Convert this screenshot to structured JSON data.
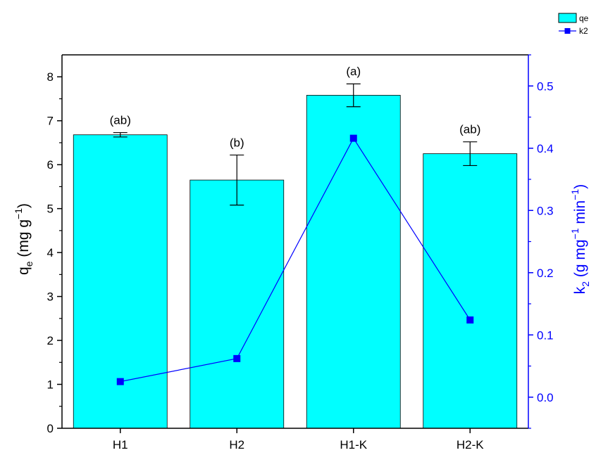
{
  "chart_data": {
    "type": "bar",
    "categories": [
      "H1",
      "H2",
      "H1-K",
      "H2-K"
    ],
    "series": [
      {
        "name": "qe",
        "type": "bar",
        "axis": "left",
        "values": [
          6.68,
          5.65,
          7.58,
          6.25
        ],
        "error": [
          0.05,
          0.57,
          0.26,
          0.27
        ],
        "color": "#00FFFF"
      },
      {
        "name": "k2",
        "type": "line",
        "axis": "right",
        "values": [
          0.025,
          0.062,
          0.416,
          0.124
        ],
        "color": "#0000FF"
      }
    ],
    "annotations": [
      "(ab)",
      "(b)",
      "(a)",
      "(ab)"
    ],
    "ylabel": {
      "base": "q",
      "sub": "e",
      "rest": " (mg g",
      "sup": "−1",
      "close": ")"
    },
    "y2label": {
      "base": "k",
      "sub": "2",
      "rest": " (g mg",
      "sup": "−1",
      "mid": " min",
      "sup2": "−1",
      "close": ")"
    },
    "ylim": [
      0,
      8.5
    ],
    "y2lim": [
      -0.05,
      0.55
    ],
    "yticks": [
      "0",
      "1",
      "2",
      "3",
      "4",
      "5",
      "6",
      "7",
      "8"
    ],
    "y2ticks": [
      "0.0",
      "0.1",
      "0.2",
      "0.3",
      "0.4",
      "0.5"
    ],
    "legend_position": "top-right",
    "grid": false
  }
}
